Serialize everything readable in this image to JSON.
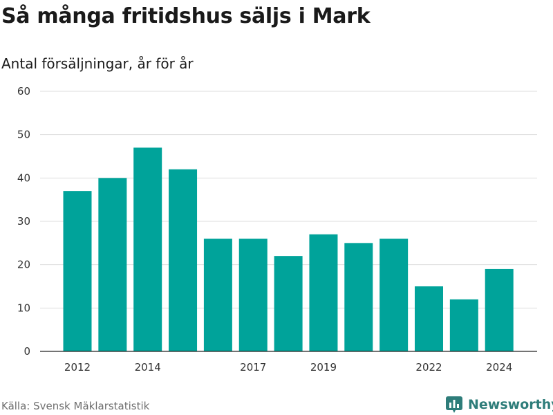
{
  "header": {
    "title": "Så många fritidshus säljs i Mark",
    "subtitle": "Antal försäljningar, år för år"
  },
  "footer": {
    "source": "Källa: Svensk Mäklarstatistik",
    "brand": "Newsworthy",
    "brand_icon": "bar-chart-icon"
  },
  "colors": {
    "bar": "#00a39a",
    "grid": "#dddddd",
    "brand": "#2e7d7a"
  },
  "chart_data": {
    "type": "bar",
    "title": "Så många fritidshus säljs i Mark",
    "subtitle": "Antal försäljningar, år för år",
    "categories": [
      2012,
      2013,
      2014,
      2015,
      2016,
      2017,
      2018,
      2019,
      2020,
      2021,
      2022,
      2023,
      2024
    ],
    "values": [
      37,
      40,
      47,
      42,
      26,
      26,
      22,
      27,
      25,
      26,
      15,
      12,
      19
    ],
    "x_tick_labels": [
      "2012",
      "2014",
      "2017",
      "2019",
      "2022",
      "2024"
    ],
    "y_ticks": [
      0,
      10,
      20,
      30,
      40,
      50,
      60
    ],
    "ylim": [
      0,
      60
    ],
    "xlabel": "",
    "ylabel": "",
    "grid": true,
    "legend": "none"
  }
}
